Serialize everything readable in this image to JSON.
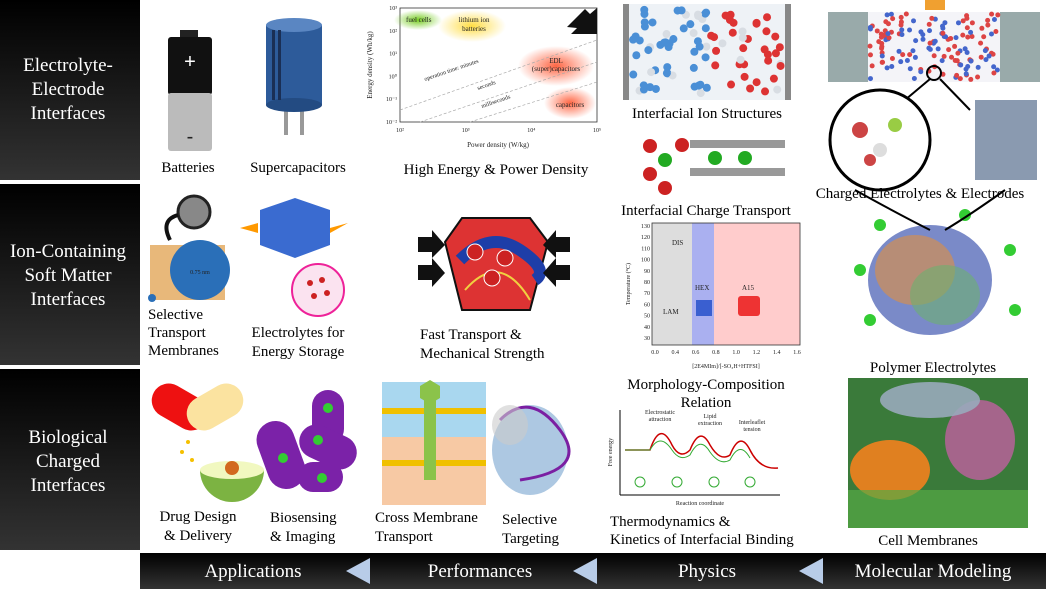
{
  "rows": [
    {
      "label": [
        "Electrolyte-",
        "Electrode",
        "Interfaces"
      ]
    },
    {
      "label": [
        "Ion-Containing",
        "Soft Matter",
        "Interfaces"
      ]
    },
    {
      "label": [
        "Biological",
        "Charged",
        "Interfaces"
      ]
    }
  ],
  "captions": {
    "batteries": [
      "Batteries"
    ],
    "supercapacitors": [
      "Supercapacitors"
    ],
    "energy_power": [
      "High Energy & Power Density"
    ],
    "ion_structures": [
      "Interfacial Ion Structures"
    ],
    "charge_transport": [
      "Interfacial Charge Transport"
    ],
    "charged_electrolytes": [
      "Charged Electrolytes & Electrodes"
    ],
    "membranes": [
      "Selective",
      "Transport",
      "Membranes"
    ],
    "energy_storage": [
      "Electrolytes for",
      "Energy Storage"
    ],
    "fast_transport": [
      "Fast Transport &",
      "Mechanical Strength"
    ],
    "morphology": [
      "Morphology-Composition",
      "Relation"
    ],
    "polymer_electrolytes": [
      "Polymer Electrolytes"
    ],
    "drug_design": [
      "Drug Design",
      "& Delivery"
    ],
    "biosensing": [
      "Biosensing",
      "& Imaging"
    ],
    "cross_membrane": [
      "Cross Membrane",
      "Transport"
    ],
    "selective_targeting": [
      "Selective",
      "Targeting"
    ],
    "thermodynamics": [
      "Thermodynamics &",
      "Kinetics of Interfacial Binding"
    ],
    "cell_membranes": [
      "Cell Membranes"
    ]
  },
  "battery": {
    "plus": "+",
    "minus": "-"
  },
  "ragone": {
    "y_label": "Energy density (Wh/kg)",
    "x_label": "Power density (W/kg)",
    "xticks": [
      "10²",
      "10³",
      "10⁴",
      "10⁵"
    ],
    "yticks": [
      "10³",
      "10²",
      "10¹",
      "10⁰",
      "10⁻¹",
      "10⁻²"
    ],
    "regions": {
      "fuel_cells": "fuel cells",
      "lithium": [
        "lithium ion",
        "batteries"
      ],
      "edl": [
        "EDL",
        "(super)capacitors"
      ],
      "capacitors": "capacitors"
    },
    "times": [
      "operation time: minutes",
      "seconds",
      "milliseconds"
    ]
  },
  "phase": {
    "y_label": "Temperature (°C)",
    "x_label": "[2E4MIm]/[-SO₃H+HTFSI]",
    "yticks": [
      "130",
      "120",
      "110",
      "100",
      "90",
      "80",
      "70",
      "60",
      "50",
      "40",
      "30"
    ],
    "xticks": [
      "0.0",
      "0.4",
      "0.6",
      "0.8",
      "1.0",
      "1.2",
      "1.4",
      "1.6"
    ],
    "regions": [
      "DIS",
      "LAM",
      "HEX",
      "A15"
    ]
  },
  "energy": {
    "y_label": "Free energy",
    "x_label": "Reaction coordinate",
    "notes": [
      [
        "Electrostatic",
        "attraction"
      ],
      [
        "Lipid",
        "extraction"
      ],
      [
        "Interleaflet",
        "tension"
      ]
    ]
  },
  "footer": [
    "Applications",
    "Performances",
    "Physics",
    "Molecular Modeling"
  ]
}
